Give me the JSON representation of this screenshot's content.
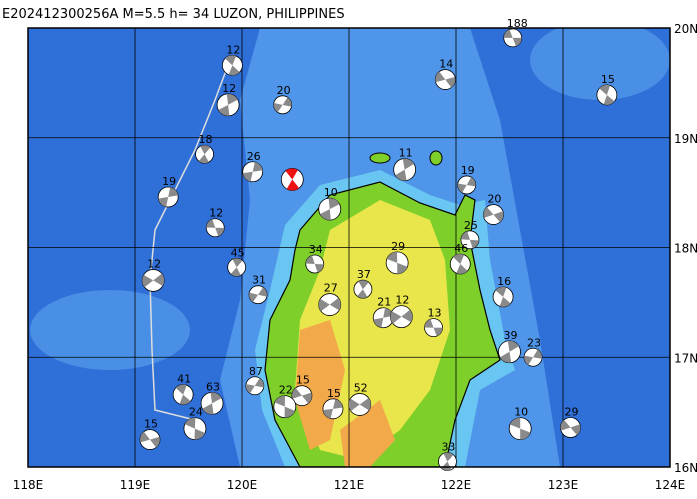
{
  "title": "E202412300256A M=5.5 h= 34 LUZON, PHILIPPINES",
  "map": {
    "lonlim": [
      118,
      124
    ],
    "latlim": [
      16,
      20
    ],
    "lon_ticks": [
      {
        "value": 118,
        "label": "118E"
      },
      {
        "value": 119,
        "label": "119E"
      },
      {
        "value": 120,
        "label": "120E"
      },
      {
        "value": 121,
        "label": "121E"
      },
      {
        "value": 122,
        "label": "122E"
      },
      {
        "value": 123,
        "label": "123E"
      },
      {
        "value": 124,
        "label": "124E"
      }
    ],
    "lat_ticks": [
      {
        "value": 16,
        "label": "16N"
      },
      {
        "value": 17,
        "label": "17N"
      },
      {
        "value": 18,
        "label": "18N"
      },
      {
        "value": 19,
        "label": "19N"
      },
      {
        "value": 20,
        "label": "20N"
      }
    ],
    "main_event": {
      "lon": 120.47,
      "lat": 18.62
    },
    "events": [
      {
        "lon": 122.53,
        "lat": 19.91,
        "depth": 188
      },
      {
        "lon": 123.41,
        "lat": 19.39,
        "depth": 15
      },
      {
        "lon": 121.52,
        "lat": 18.71,
        "depth": 11
      },
      {
        "lon": 122.1,
        "lat": 18.57,
        "depth": 19
      },
      {
        "lon": 122.35,
        "lat": 18.3,
        "depth": 20
      },
      {
        "lon": 121.45,
        "lat": 17.86,
        "depth": 29
      },
      {
        "lon": 121.13,
        "lat": 17.62,
        "depth": 37
      },
      {
        "lon": 121.32,
        "lat": 17.36,
        "depth": 21
      },
      {
        "lon": 121.49,
        "lat": 17.37,
        "depth": 12
      },
      {
        "lon": 121.79,
        "lat": 17.27,
        "depth": 13
      },
      {
        "lon": 122.44,
        "lat": 17.55,
        "depth": 16
      },
      {
        "lon": 122.5,
        "lat": 17.05,
        "depth": 39
      },
      {
        "lon": 122.72,
        "lat": 17.0,
        "depth": 23
      },
      {
        "lon": 123.07,
        "lat": 16.36,
        "depth": 29
      },
      {
        "lon": 122.6,
        "lat": 16.35,
        "depth": 10
      },
      {
        "lon": 119.65,
        "lat": 18.85,
        "depth": 18
      },
      {
        "lon": 119.31,
        "lat": 18.46,
        "depth": 19
      },
      {
        "lon": 119.17,
        "lat": 17.7,
        "depth": 12
      },
      {
        "lon": 119.75,
        "lat": 18.18,
        "depth": 12
      },
      {
        "lon": 119.45,
        "lat": 16.66,
        "depth": 41
      },
      {
        "lon": 119.72,
        "lat": 16.58,
        "depth": 63
      },
      {
        "lon": 120.12,
        "lat": 16.74,
        "depth": 87
      },
      {
        "lon": 120.56,
        "lat": 16.65,
        "depth": 15
      },
      {
        "lon": 120.4,
        "lat": 16.55,
        "depth": 22
      },
      {
        "lon": 119.95,
        "lat": 17.82,
        "depth": 45
      },
      {
        "lon": 120.1,
        "lat": 18.69,
        "depth": 26
      },
      {
        "lon": 120.82,
        "lat": 17.48,
        "depth": 27
      },
      {
        "lon": 120.68,
        "lat": 17.85,
        "depth": 34
      },
      {
        "lon": 119.91,
        "lat": 19.66,
        "depth": 12
      },
      {
        "lon": 119.87,
        "lat": 19.3,
        "depth": 12
      },
      {
        "lon": 120.38,
        "lat": 19.3,
        "depth": 20
      },
      {
        "lon": 119.14,
        "lat": 16.25,
        "depth": 15
      },
      {
        "lon": 119.56,
        "lat": 16.35,
        "depth": 24
      },
      {
        "lon": 121.92,
        "lat": 16.05,
        "depth": 33
      },
      {
        "lon": 120.85,
        "lat": 16.53,
        "depth": 15
      },
      {
        "lon": 121.1,
        "lat": 16.57,
        "depth": 52
      },
      {
        "lon": 122.13,
        "lat": 18.07,
        "depth": 25
      },
      {
        "lon": 122.04,
        "lat": 17.85,
        "depth": 46
      },
      {
        "lon": 120.82,
        "lat": 18.35,
        "depth": 10
      },
      {
        "lon": 120.15,
        "lat": 17.57,
        "depth": 31
      },
      {
        "lon": 121.9,
        "lat": 19.53,
        "depth": 14
      }
    ]
  }
}
